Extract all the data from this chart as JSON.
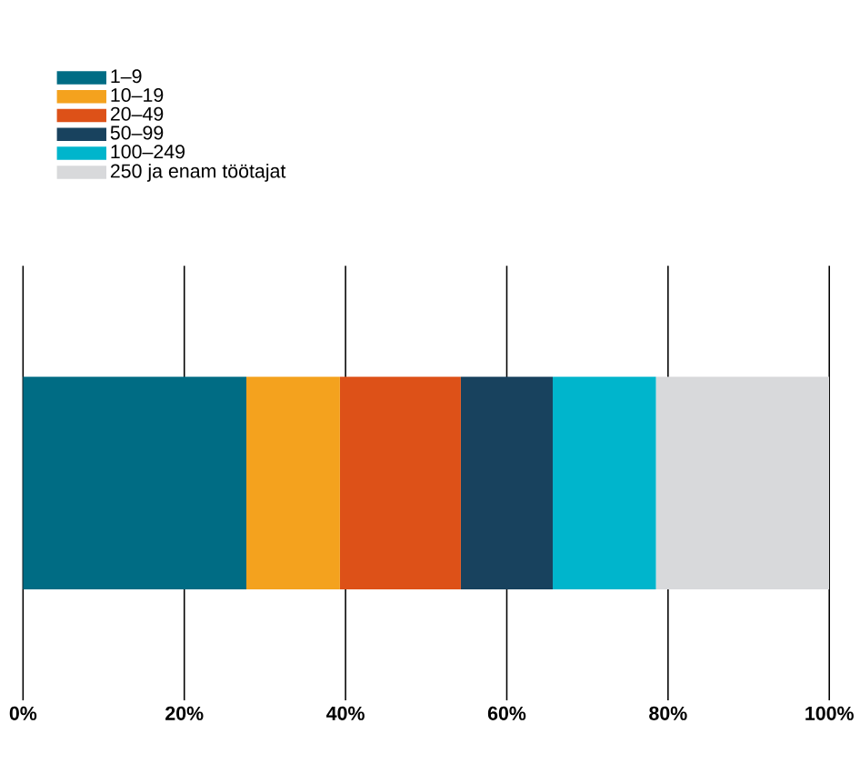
{
  "chart_data": {
    "type": "bar",
    "orientation": "horizontal",
    "stacked": true,
    "categories": [
      null
    ],
    "series": [
      {
        "name": "1–9",
        "color": "#006c84",
        "values": [
          27.7
        ]
      },
      {
        "name": "10–19",
        "color": "#f4a21e",
        "values": [
          11.6
        ]
      },
      {
        "name": "20–49",
        "color": "#dd5118",
        "values": [
          15.0
        ]
      },
      {
        "name": "50–99",
        "color": "#18425e",
        "values": [
          11.4
        ]
      },
      {
        "name": "100–249",
        "color": "#00b5cc",
        "values": [
          12.8
        ]
      },
      {
        "name": "250 ja enam töötajat",
        "color": "#d8d9db",
        "values": [
          21.5
        ]
      }
    ],
    "xlim": [
      0,
      100
    ],
    "xticks": [
      {
        "value": 0,
        "label": "0%"
      },
      {
        "value": 20,
        "label": "20%"
      },
      {
        "value": 40,
        "label": "40%"
      },
      {
        "value": 60,
        "label": "60%"
      },
      {
        "value": 80,
        "label": "80%"
      },
      {
        "value": 100,
        "label": "100%"
      }
    ],
    "grid": "x",
    "legend": "top left"
  }
}
